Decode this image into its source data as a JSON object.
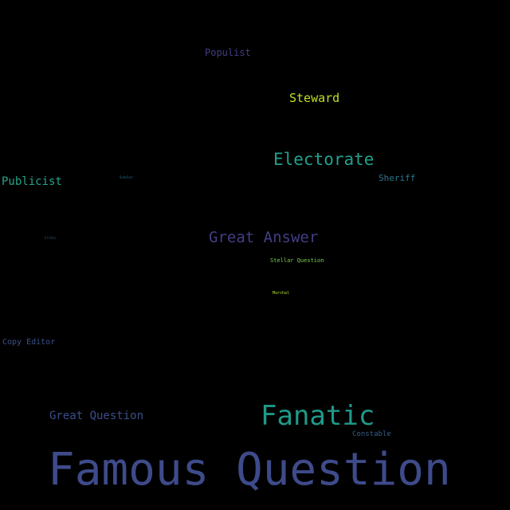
{
  "words": [
    {
      "key": "famous_question",
      "text": "Famous Question",
      "color": "#3e4b8a"
    },
    {
      "key": "fanatic",
      "text": "Fanatic",
      "color": "#1f9a8a"
    },
    {
      "key": "electorate",
      "text": "Electorate",
      "color": "#21a08c"
    },
    {
      "key": "great_answer",
      "text": "Great Answer",
      "color": "#433e85"
    },
    {
      "key": "steward",
      "text": "Steward",
      "color": "#c2df23"
    },
    {
      "key": "publicist",
      "text": "Publicist",
      "color": "#25a38a"
    },
    {
      "key": "great_question",
      "text": "Great Question",
      "color": "#3d4e8a"
    },
    {
      "key": "populist",
      "text": "Populist",
      "color": "#433d84"
    },
    {
      "key": "sheriff",
      "text": "Sheriff",
      "color": "#2a788e"
    },
    {
      "key": "copy_editor",
      "text": "Copy Editor",
      "color": "#3b528b"
    },
    {
      "key": "constable",
      "text": "Constable",
      "color": "#355f8d"
    },
    {
      "key": "stellar_question",
      "text": "Stellar Question",
      "color": "#7ad151"
    },
    {
      "key": "marshal",
      "text": "Marshal",
      "color": "#b5de2b"
    },
    {
      "key": "tiny_word_1",
      "text": "Scholar",
      "color": "#2c728e"
    },
    {
      "key": "tiny_word_2",
      "text": "Critic",
      "color": "#31688e"
    }
  ],
  "background_color": "#000000"
}
